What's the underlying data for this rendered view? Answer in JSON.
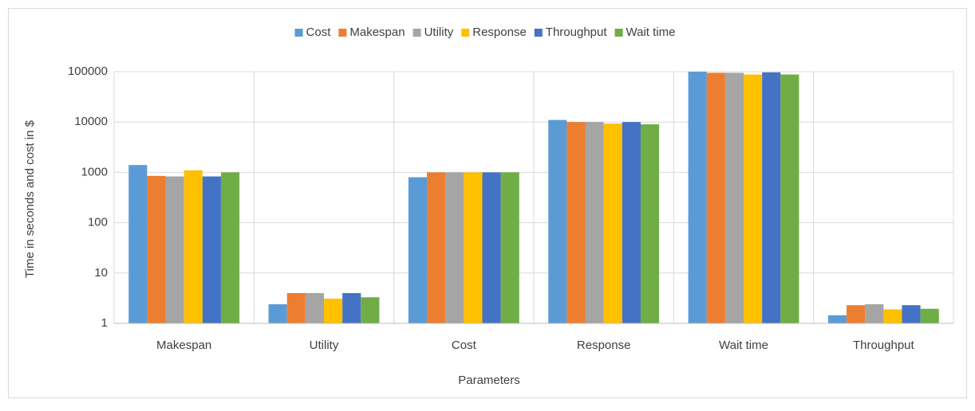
{
  "chart_data": {
    "type": "bar",
    "y_label": "Time in seconds and cost in $",
    "x_label": "Parameters",
    "categories": [
      "Makespan",
      "Utility",
      "Cost",
      "Response",
      "Wait time",
      "Throughput"
    ],
    "series": [
      {
        "name": "Cost",
        "color": "#5b9bd5",
        "values": [
          1400,
          2.4,
          800,
          11000,
          100000,
          1.45
        ]
      },
      {
        "name": "Makespan",
        "color": "#ed7d31",
        "values": [
          850,
          4,
          1000,
          10000,
          95000,
          2.3
        ]
      },
      {
        "name": "Utility",
        "color": "#a5a5a5",
        "values": [
          830,
          4,
          1000,
          10000,
          95000,
          2.4
        ]
      },
      {
        "name": "Response",
        "color": "#ffc000",
        "values": [
          1100,
          3.1,
          1000,
          9300,
          88000,
          1.9
        ]
      },
      {
        "name": "Throughput",
        "color": "#4472c4",
        "values": [
          830,
          4,
          1000,
          10000,
          97000,
          2.3
        ]
      },
      {
        "name": "Wait time",
        "color": "#70ad47",
        "values": [
          1000,
          3.3,
          1000,
          9000,
          88000,
          1.95
        ]
      }
    ],
    "ylim": [
      1,
      100000
    ],
    "yticks": [
      1,
      10,
      100,
      1000,
      10000,
      100000
    ],
    "log_y": true,
    "grid": true,
    "legend": "top"
  }
}
